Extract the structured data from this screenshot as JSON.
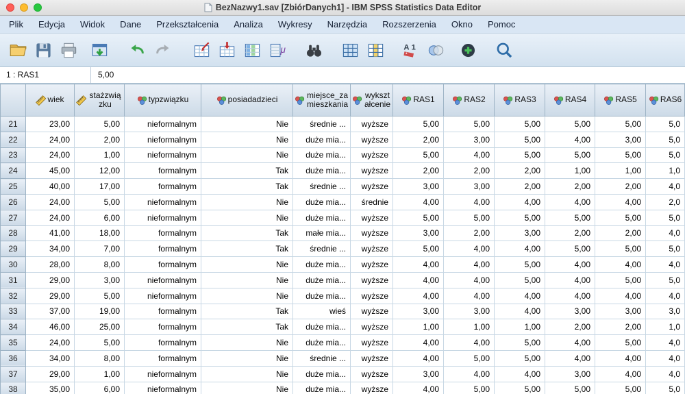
{
  "window": {
    "title": "BezNazwy1.sav [ZbiórDanych1] - IBM SPSS Statistics Data Editor"
  },
  "menu": {
    "items": [
      "Plik",
      "Edycja",
      "Widok",
      "Dane",
      "Przekształcenia",
      "Analiza",
      "Wykresy",
      "Narzędzia",
      "Rozszerzenia",
      "Okno",
      "Pomoc"
    ]
  },
  "toolbar": {
    "icons": [
      "open-data-icon",
      "save-icon",
      "print-icon",
      "recall-dialogs-icon",
      "undo-icon",
      "redo-icon",
      "goto-case-icon",
      "goto-variable-icon",
      "variables-icon",
      "descriptive-stats-icon",
      "find-icon",
      "insert-case-icon",
      "insert-variable-icon",
      "value-labels-icon",
      "use-variable-sets-icon",
      "show-all-variables-icon",
      "zoom-icon"
    ]
  },
  "cellref": {
    "label": "1 : RAS1",
    "value": "5,00"
  },
  "grid": {
    "columns": [
      {
        "label": "wiek",
        "measure": "scale"
      },
      {
        "label": "stażzwiązku",
        "measure": "scale"
      },
      {
        "label": "typzwiązku",
        "measure": "nominal"
      },
      {
        "label": "posiadadzieci",
        "measure": "nominal"
      },
      {
        "label": "miejsce_zamieszkania",
        "measure": "nominal"
      },
      {
        "label": "wykształcenie",
        "measure": "nominal"
      },
      {
        "label": "RAS1",
        "measure": "nominal"
      },
      {
        "label": "RAS2",
        "measure": "nominal"
      },
      {
        "label": "RAS3",
        "measure": "nominal"
      },
      {
        "label": "RAS4",
        "measure": "nominal"
      },
      {
        "label": "RAS5",
        "measure": "nominal"
      },
      {
        "label": "RAS6",
        "measure": "nominal"
      }
    ],
    "rows": [
      {
        "n": "21",
        "c": [
          "23,00",
          "5,00",
          "nieformalnym",
          "Nie",
          "średnie ...",
          "wyższe",
          "5,00",
          "5,00",
          "5,00",
          "5,00",
          "5,00",
          "5,0"
        ]
      },
      {
        "n": "22",
        "c": [
          "24,00",
          "2,00",
          "nieformalnym",
          "Nie",
          "duże mia...",
          "wyższe",
          "2,00",
          "3,00",
          "5,00",
          "4,00",
          "3,00",
          "5,0"
        ]
      },
      {
        "n": "23",
        "c": [
          "24,00",
          "1,00",
          "nieformalnym",
          "Nie",
          "duże mia...",
          "wyższe",
          "5,00",
          "4,00",
          "5,00",
          "5,00",
          "5,00",
          "5,0"
        ]
      },
      {
        "n": "24",
        "c": [
          "45,00",
          "12,00",
          "formalnym",
          "Tak",
          "duże mia...",
          "wyższe",
          "2,00",
          "2,00",
          "2,00",
          "1,00",
          "1,00",
          "1,0"
        ]
      },
      {
        "n": "25",
        "c": [
          "40,00",
          "17,00",
          "formalnym",
          "Tak",
          "średnie ...",
          "wyższe",
          "3,00",
          "3,00",
          "2,00",
          "2,00",
          "2,00",
          "4,0"
        ]
      },
      {
        "n": "26",
        "c": [
          "24,00",
          "5,00",
          "nieformalnym",
          "Nie",
          "duże mia...",
          "średnie",
          "4,00",
          "4,00",
          "4,00",
          "4,00",
          "4,00",
          "2,0"
        ]
      },
      {
        "n": "27",
        "c": [
          "24,00",
          "6,00",
          "nieformalnym",
          "Nie",
          "duże mia...",
          "wyższe",
          "5,00",
          "5,00",
          "5,00",
          "5,00",
          "5,00",
          "5,0"
        ]
      },
      {
        "n": "28",
        "c": [
          "41,00",
          "18,00",
          "formalnym",
          "Tak",
          "małe mia...",
          "wyższe",
          "3,00",
          "2,00",
          "3,00",
          "2,00",
          "2,00",
          "4,0"
        ]
      },
      {
        "n": "29",
        "c": [
          "34,00",
          "7,00",
          "formalnym",
          "Tak",
          "średnie ...",
          "wyższe",
          "5,00",
          "4,00",
          "4,00",
          "5,00",
          "5,00",
          "5,0"
        ]
      },
      {
        "n": "30",
        "c": [
          "28,00",
          "8,00",
          "formalnym",
          "Nie",
          "duże mia...",
          "wyższe",
          "4,00",
          "4,00",
          "5,00",
          "4,00",
          "4,00",
          "4,0"
        ]
      },
      {
        "n": "31",
        "c": [
          "29,00",
          "3,00",
          "nieformalnym",
          "Nie",
          "duże mia...",
          "wyższe",
          "4,00",
          "4,00",
          "5,00",
          "4,00",
          "5,00",
          "5,0"
        ]
      },
      {
        "n": "32",
        "c": [
          "29,00",
          "5,00",
          "nieformalnym",
          "Nie",
          "duże mia...",
          "wyższe",
          "4,00",
          "4,00",
          "4,00",
          "4,00",
          "4,00",
          "4,0"
        ]
      },
      {
        "n": "33",
        "c": [
          "37,00",
          "19,00",
          "formalnym",
          "Tak",
          "wieś",
          "wyższe",
          "3,00",
          "3,00",
          "4,00",
          "3,00",
          "3,00",
          "3,0"
        ]
      },
      {
        "n": "34",
        "c": [
          "46,00",
          "25,00",
          "formalnym",
          "Tak",
          "duże mia...",
          "wyższe",
          "1,00",
          "1,00",
          "1,00",
          "2,00",
          "2,00",
          "1,0"
        ]
      },
      {
        "n": "35",
        "c": [
          "24,00",
          "5,00",
          "formalnym",
          "Nie",
          "duże mia...",
          "wyższe",
          "4,00",
          "4,00",
          "5,00",
          "4,00",
          "5,00",
          "4,0"
        ]
      },
      {
        "n": "36",
        "c": [
          "34,00",
          "8,00",
          "formalnym",
          "Nie",
          "średnie ...",
          "wyższe",
          "4,00",
          "5,00",
          "5,00",
          "4,00",
          "4,00",
          "4,0"
        ]
      },
      {
        "n": "37",
        "c": [
          "29,00",
          "1,00",
          "nieformalnym",
          "Nie",
          "duże mia...",
          "wyższe",
          "3,00",
          "4,00",
          "4,00",
          "3,00",
          "4,00",
          "4,0"
        ]
      },
      {
        "n": "38",
        "c": [
          "35,00",
          "6,00",
          "nieformalnym",
          "Nie",
          "duże mia...",
          "wyższe",
          "4,00",
          "5,00",
          "5,00",
          "5,00",
          "5,00",
          "5,0"
        ]
      }
    ]
  }
}
